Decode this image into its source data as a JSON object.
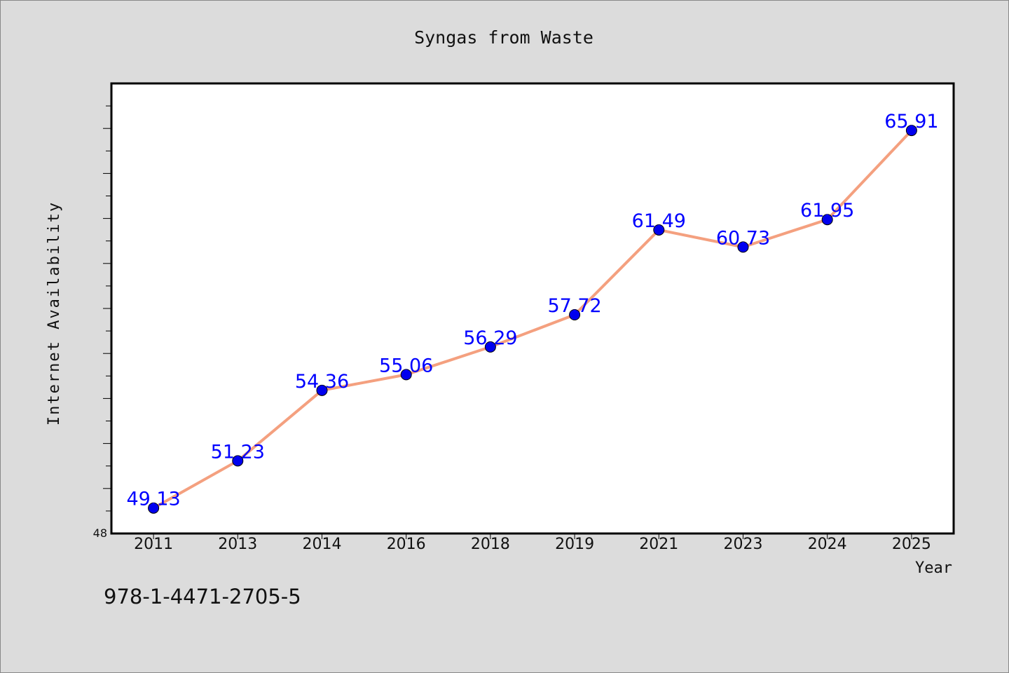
{
  "chart_data": {
    "type": "line",
    "title": "Syngas from Waste",
    "xlabel": "Year",
    "ylabel": "Internet Availability",
    "categories": [
      "2011",
      "2013",
      "2014",
      "2016",
      "2018",
      "2019",
      "2021",
      "2023",
      "2024",
      "2025"
    ],
    "series": [
      {
        "values": [
          49.13,
          51.23,
          54.36,
          55.06,
          56.29,
          57.72,
          61.49,
          60.73,
          61.95,
          65.91
        ],
        "data_labels": [
          "49.13",
          "51.23",
          "54.36",
          "55.06",
          "56.29",
          "57.72",
          "61.49",
          "60.73",
          "61.95",
          "65.91"
        ]
      }
    ],
    "ylim": [
      48,
      68
    ],
    "y_tick_labels": [
      "48"
    ],
    "grid": false,
    "colors": {
      "line": "#f4a07f",
      "marker": "#0000ee",
      "data_label": "#0000ff",
      "plot_background": "#ffffff",
      "page_background": "#dcdcdc"
    }
  },
  "footer": {
    "isbn": "978-1-4471-2705-5"
  }
}
